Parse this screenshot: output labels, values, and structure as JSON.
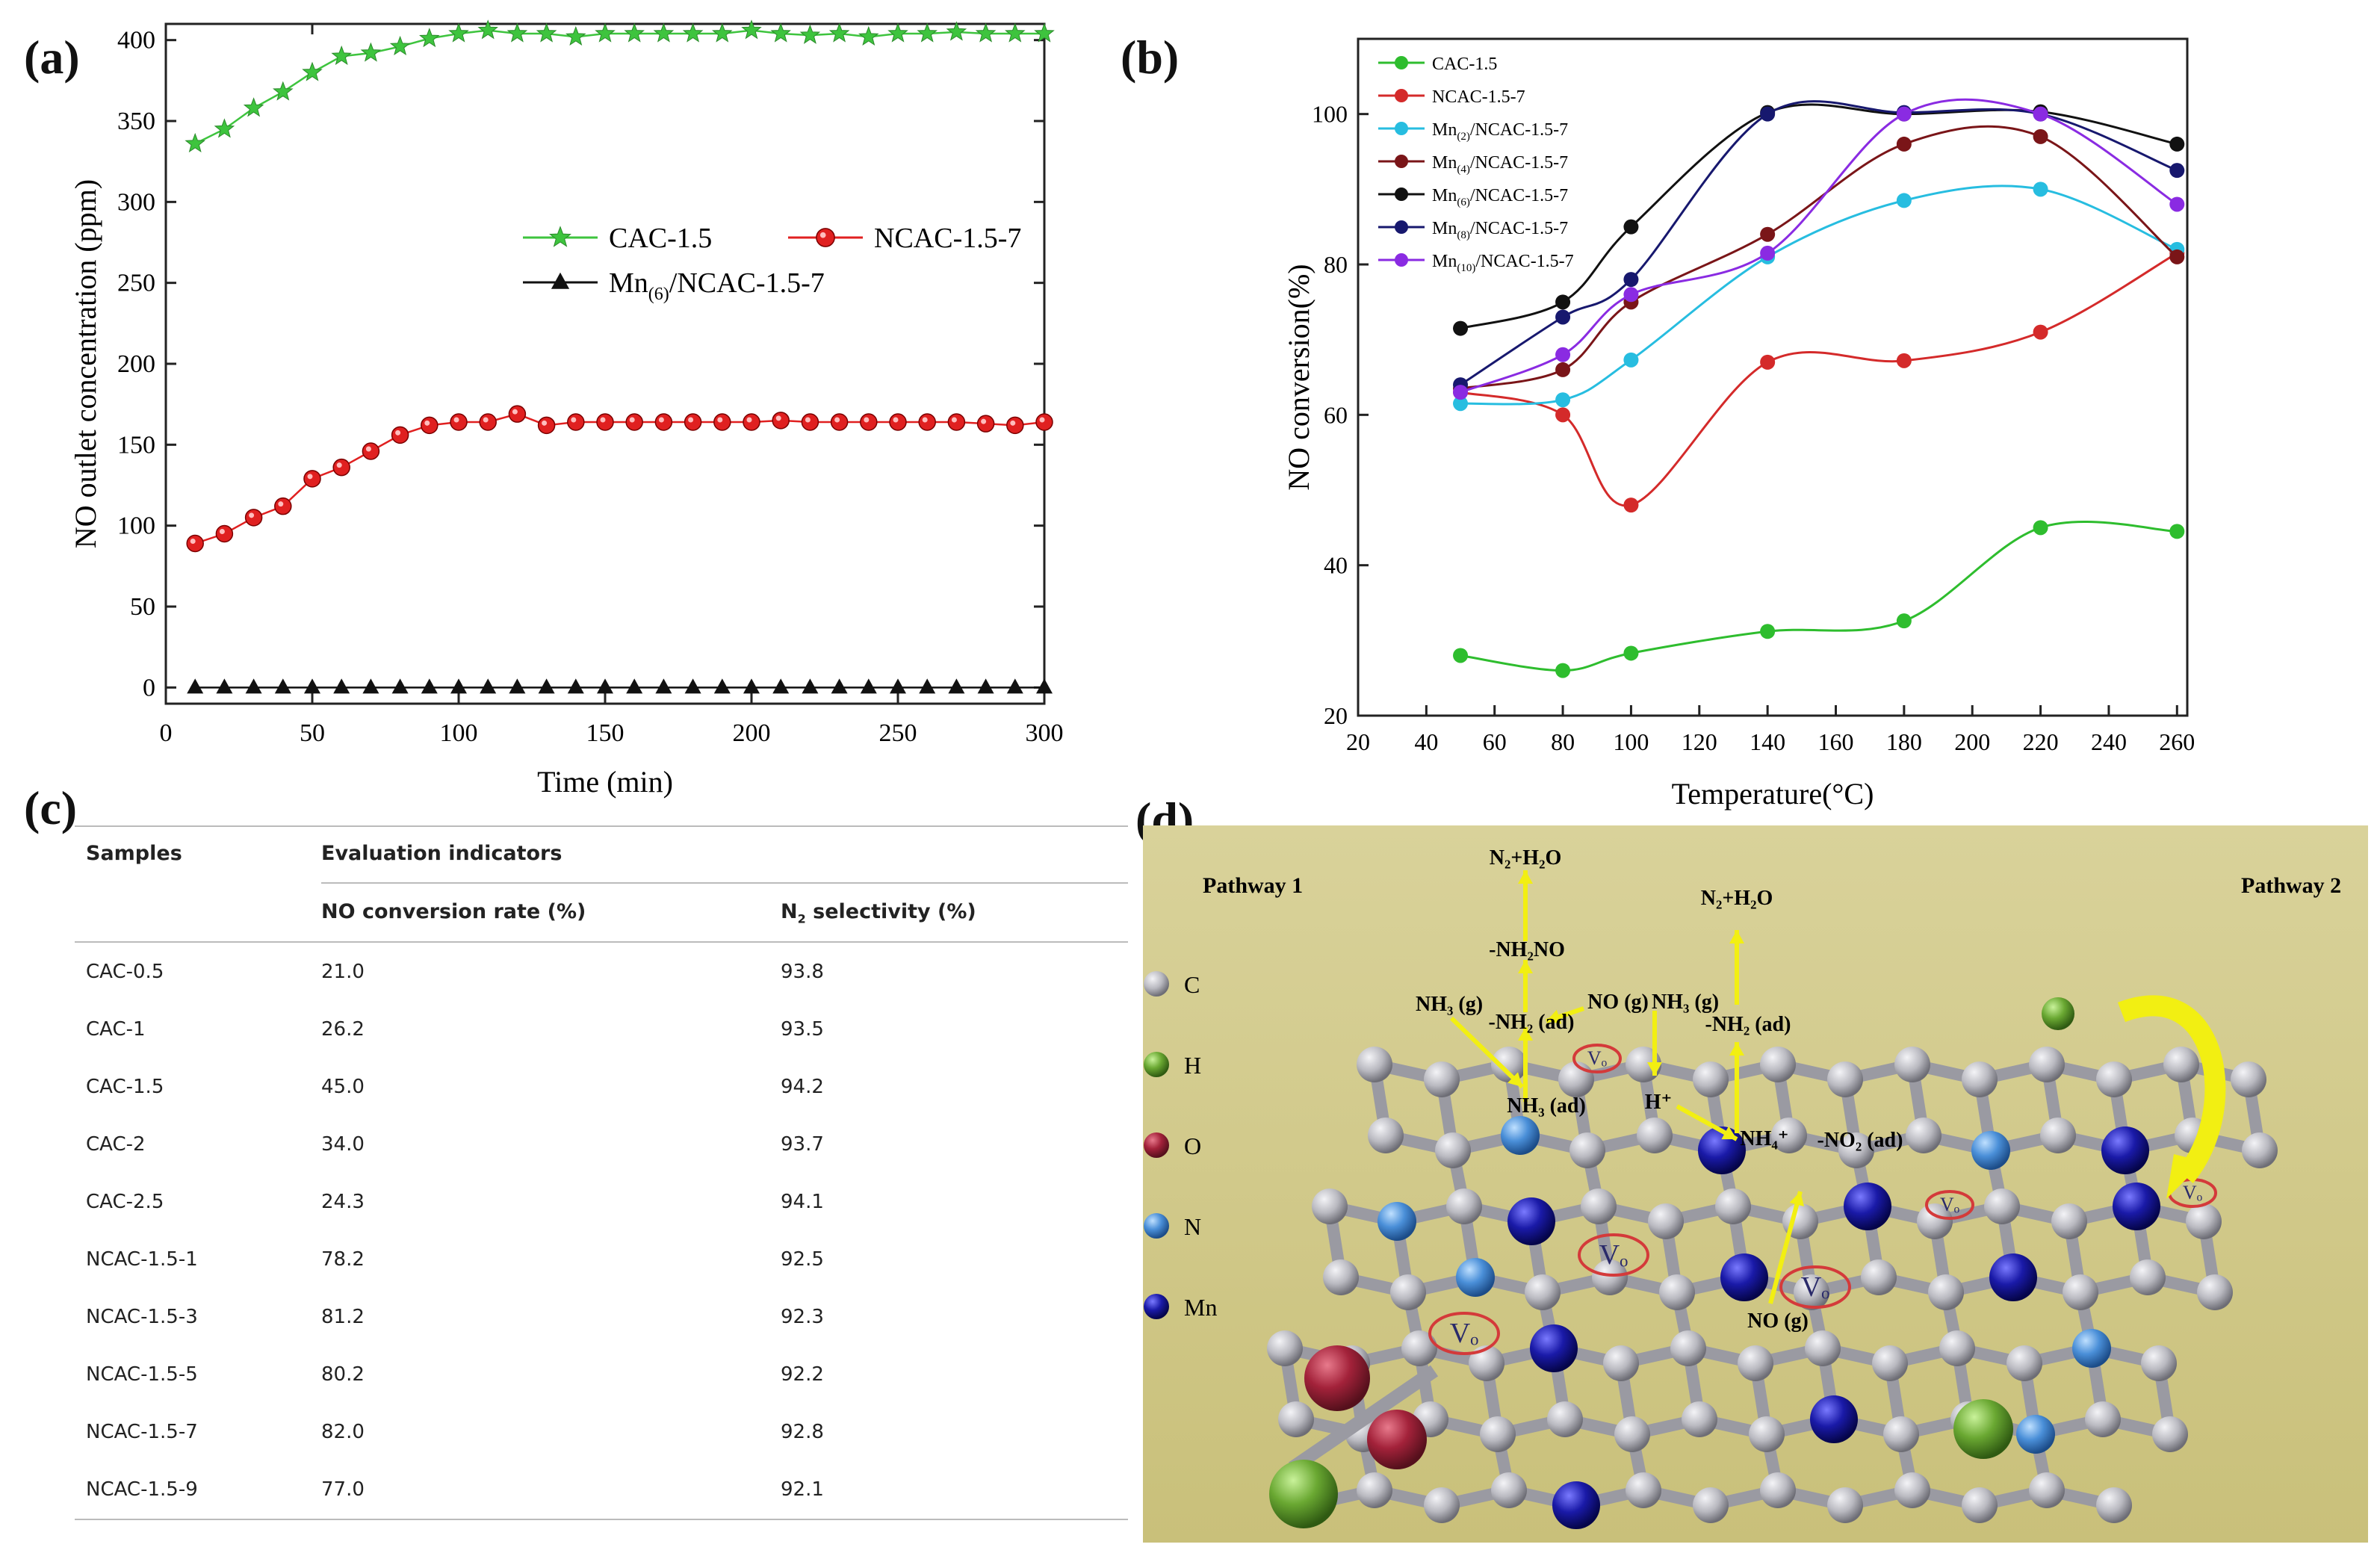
{
  "panel_labels": {
    "a": "(a)",
    "b": "(b)",
    "c": "(c)",
    "d": "(d)"
  },
  "chart_data": [
    {
      "id": "a",
      "type": "line",
      "xlabel": "Time (min)",
      "ylabel": "NO outlet concentration (ppm)",
      "xlim": [
        0,
        300
      ],
      "ylim": [
        -10,
        410
      ],
      "xticks": [
        0,
        50,
        100,
        150,
        200,
        250,
        300
      ],
      "yticks": [
        0,
        50,
        100,
        150,
        200,
        250,
        300,
        350,
        400
      ],
      "legend_position": "center-right",
      "series": [
        {
          "name": "CAC-1.5",
          "color": "#3ec43e",
          "marker": "star",
          "x": [
            10,
            20,
            30,
            40,
            50,
            60,
            70,
            80,
            90,
            100,
            110,
            120,
            130,
            140,
            150,
            160,
            170,
            180,
            190,
            200,
            210,
            220,
            230,
            240,
            250,
            260,
            270,
            280,
            290,
            300
          ],
          "y": [
            336,
            345,
            358,
            368,
            380,
            390,
            392,
            396,
            401,
            404,
            406,
            404,
            404,
            402,
            404,
            404,
            404,
            404,
            404,
            406,
            404,
            403,
            404,
            402,
            404,
            404,
            405,
            404,
            404,
            404
          ]
        },
        {
          "name": "NCAC-1.5-7",
          "color": "#e02020",
          "marker": "circle",
          "x": [
            10,
            20,
            30,
            40,
            50,
            60,
            70,
            80,
            90,
            100,
            110,
            120,
            130,
            140,
            150,
            160,
            170,
            180,
            190,
            200,
            210,
            220,
            230,
            240,
            250,
            260,
            270,
            280,
            290,
            300
          ],
          "y": [
            89,
            95,
            105,
            112,
            129,
            136,
            146,
            156,
            162,
            164,
            164,
            169,
            162,
            164,
            164,
            164,
            164,
            164,
            164,
            164,
            165,
            164,
            164,
            164,
            164,
            164,
            164,
            163,
            162,
            164
          ]
        },
        {
          "name": "Mn(6)/NCAC-1.5-7",
          "color": "#111111",
          "marker": "triangle",
          "x": [
            10,
            20,
            30,
            40,
            50,
            60,
            70,
            80,
            90,
            100,
            110,
            120,
            130,
            140,
            150,
            160,
            170,
            180,
            190,
            200,
            210,
            220,
            230,
            240,
            250,
            260,
            270,
            280,
            290,
            300
          ],
          "y": [
            0,
            0,
            0,
            0,
            0,
            0,
            0,
            0,
            0,
            0,
            0,
            0,
            0,
            0,
            0,
            0,
            0,
            0,
            0,
            0,
            0,
            0,
            0,
            0,
            0,
            0,
            0,
            0,
            0,
            0
          ]
        }
      ]
    },
    {
      "id": "b",
      "type": "line",
      "xlabel": "Temperature(°C)",
      "ylabel": "NO conversion(%)",
      "xlim": [
        20,
        263
      ],
      "ylim": [
        20,
        110
      ],
      "xticks": [
        20,
        40,
        60,
        80,
        100,
        120,
        140,
        160,
        180,
        200,
        220,
        240,
        260
      ],
      "yticks": [
        20,
        40,
        60,
        80,
        100
      ],
      "legend_position": "top-left",
      "x": [
        50,
        80,
        100,
        140,
        180,
        220,
        260
      ],
      "series": [
        {
          "name": "CAC-1.5",
          "color": "#2ebd2e",
          "values": [
            28,
            26,
            28.3,
            31.2,
            32.6,
            45,
            44.5
          ]
        },
        {
          "name": "NCAC-1.5-7",
          "color": "#d42a2a",
          "values": [
            63,
            60,
            48,
            67,
            67.2,
            71,
            81.5
          ]
        },
        {
          "name": "Mn(2)/NCAC-1.5-7",
          "color": "#27bde0",
          "values": [
            61.5,
            62,
            67.3,
            81,
            88.5,
            90,
            82
          ]
        },
        {
          "name": "Mn(4)/NCAC-1.5-7",
          "color": "#7a1518",
          "values": [
            63.5,
            66,
            75,
            84,
            96,
            97,
            81
          ]
        },
        {
          "name": "Mn(6)/NCAC-1.5-7",
          "color": "#111111",
          "values": [
            71.5,
            75,
            85,
            100.2,
            100,
            100.3,
            96
          ]
        },
        {
          "name": "Mn(8)/NCAC-1.5-7",
          "color": "#17186e",
          "values": [
            64,
            73,
            78,
            100,
            100.2,
            100,
            92.5
          ]
        },
        {
          "name": "Mn(10)/NCAC-1.5-7",
          "color": "#8a2be2",
          "values": [
            63,
            68,
            76,
            81.5,
            100,
            100,
            88
          ]
        }
      ]
    }
  ],
  "table": {
    "headers": {
      "samples": "Samples",
      "evaluation": "Evaluation indicators",
      "no_rate": "NO conversion rate (%)",
      "n2_sel_prefix": "N",
      "n2_sel_sub": "2",
      "n2_sel_suffix": " selectivity (%)"
    },
    "rows": [
      {
        "sample": "CAC-0.5",
        "no": "21.0",
        "n2": "93.8"
      },
      {
        "sample": "CAC-1",
        "no": "26.2",
        "n2": "93.5"
      },
      {
        "sample": "CAC-1.5",
        "no": "45.0",
        "n2": "94.2"
      },
      {
        "sample": "CAC-2",
        "no": "34.0",
        "n2": "93.7"
      },
      {
        "sample": "CAC-2.5",
        "no": "24.3",
        "n2": "94.1"
      },
      {
        "sample": "NCAC-1.5-1",
        "no": "78.2",
        "n2": "92.5"
      },
      {
        "sample": "NCAC-1.5-3",
        "no": "81.2",
        "n2": "92.3"
      },
      {
        "sample": "NCAC-1.5-5",
        "no": "80.2",
        "n2": "92.2"
      },
      {
        "sample": "NCAC-1.5-7",
        "no": "82.0",
        "n2": "92.8"
      },
      {
        "sample": "NCAC-1.5-9",
        "no": "77.0",
        "n2": "92.1"
      }
    ]
  },
  "scheme": {
    "pathway1": "Pathway 1",
    "pathway2": "Pathway 2",
    "labels": {
      "n2h2o_1": "N₂+H₂O",
      "n2h2o_2": "N₂+H₂O",
      "nh2no": "-NH₂NO",
      "nh3g_1": "NH₃ (g)",
      "nh3g_2": "NH₃ (g)",
      "nog_1": "NO (g)",
      "nog_2": "NO (g)",
      "nh2ad_1": "-NH₂ (ad)",
      "nh2ad_2": "-NH₂ (ad)",
      "nh3ad": "NH₃ (ad)",
      "hplus": "H⁺",
      "nh4plus": "NH₄⁺",
      "no2ad": "-NO₂ (ad)",
      "vo": "Vₒ"
    },
    "legend": [
      {
        "label": "C",
        "color": "#b9b9c0"
      },
      {
        "label": "H",
        "color": "#6aa832"
      },
      {
        "label": "O",
        "color": "#a3223a"
      },
      {
        "label": "N",
        "color": "#4a8fd8"
      },
      {
        "label": "Mn",
        "color": "#1a1aa8"
      }
    ]
  }
}
